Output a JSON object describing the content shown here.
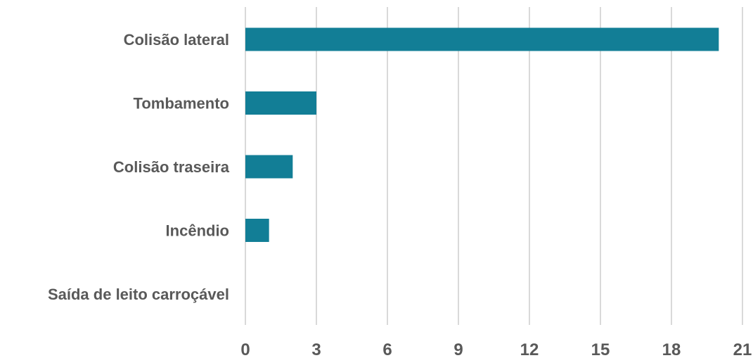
{
  "chart_data": {
    "type": "bar",
    "orientation": "horizontal",
    "title": "",
    "xlabel": "",
    "ylabel": "",
    "categories": [
      "Colisão lateral",
      "Tombamento",
      "Colisão traseira",
      "Incêndio",
      "Saída de leito carroçável"
    ],
    "values": [
      20,
      3,
      2,
      1,
      0
    ],
    "xlim": [
      0,
      21
    ],
    "xticks": [
      0,
      3,
      6,
      9,
      12,
      15,
      18,
      21
    ],
    "grid": "vertical",
    "legend": "none",
    "bar_color": "#127e96"
  }
}
